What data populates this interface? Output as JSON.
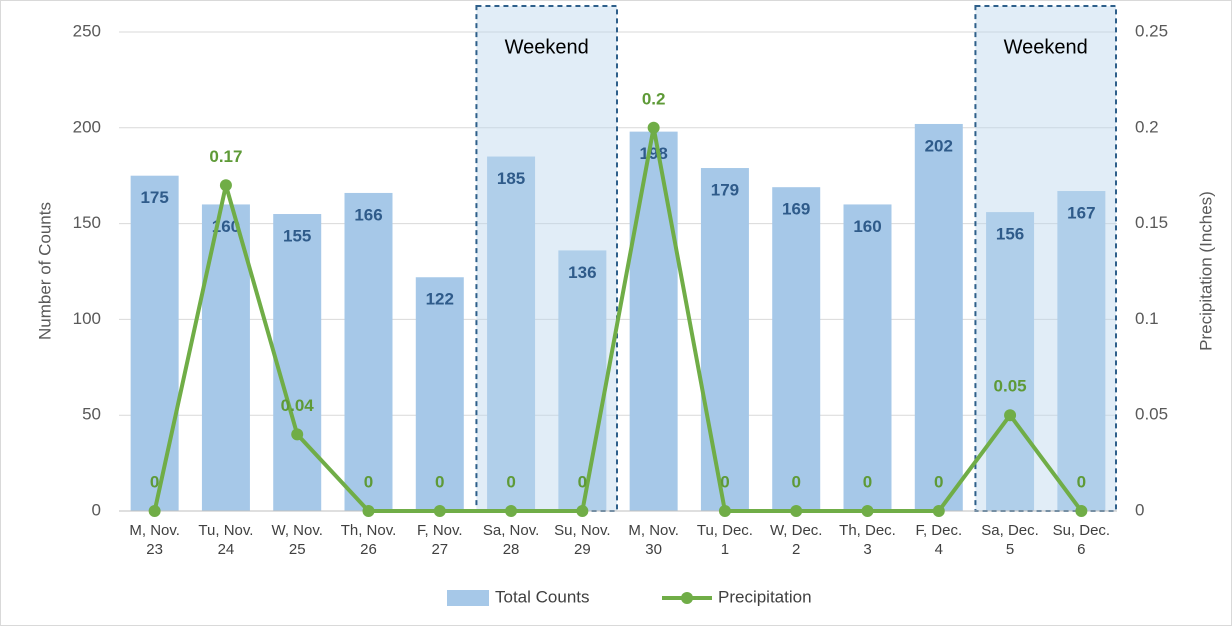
{
  "chart_data": {
    "type": "bar-line",
    "categories": [
      [
        "M, Nov.",
        "23"
      ],
      [
        "Tu, Nov.",
        "24"
      ],
      [
        "W, Nov.",
        "25"
      ],
      [
        "Th, Nov.",
        "26"
      ],
      [
        "F, Nov.",
        "27"
      ],
      [
        "Sa, Nov.",
        "28"
      ],
      [
        "Su, Nov.",
        "29"
      ],
      [
        "M, Nov.",
        "30"
      ],
      [
        "Tu, Dec.",
        "1"
      ],
      [
        "W, Dec.",
        "2"
      ],
      [
        "Th, Dec.",
        "3"
      ],
      [
        "F, Dec.",
        "4"
      ],
      [
        "Sa, Dec.",
        "5"
      ],
      [
        "Su, Dec.",
        "6"
      ]
    ],
    "series": [
      {
        "name": "Total Counts",
        "type": "bar",
        "color": "#a6c8e8",
        "values": [
          175,
          160,
          155,
          166,
          122,
          185,
          136,
          198,
          179,
          169,
          160,
          202,
          156,
          167
        ]
      },
      {
        "name": "Precipitation",
        "type": "line",
        "axis": "y2",
        "color": "#70ad47",
        "values": [
          0,
          0.17,
          0.04,
          0,
          0,
          0,
          0,
          0.2,
          0,
          0,
          0,
          0,
          0.05,
          0
        ]
      }
    ],
    "ylabel": "Number of Counts",
    "y2label": "Precipitation (Inches)",
    "ylim": [
      0,
      250
    ],
    "yticks": [
      0,
      50,
      100,
      150,
      200,
      250
    ],
    "y2lim": [
      0,
      0.25
    ],
    "y2ticks": [
      0,
      0.05,
      0.1,
      0.15,
      0.2,
      0.25
    ],
    "annotations": [
      "Weekend",
      "Weekend"
    ],
    "grid": true,
    "legend": "bottom"
  }
}
